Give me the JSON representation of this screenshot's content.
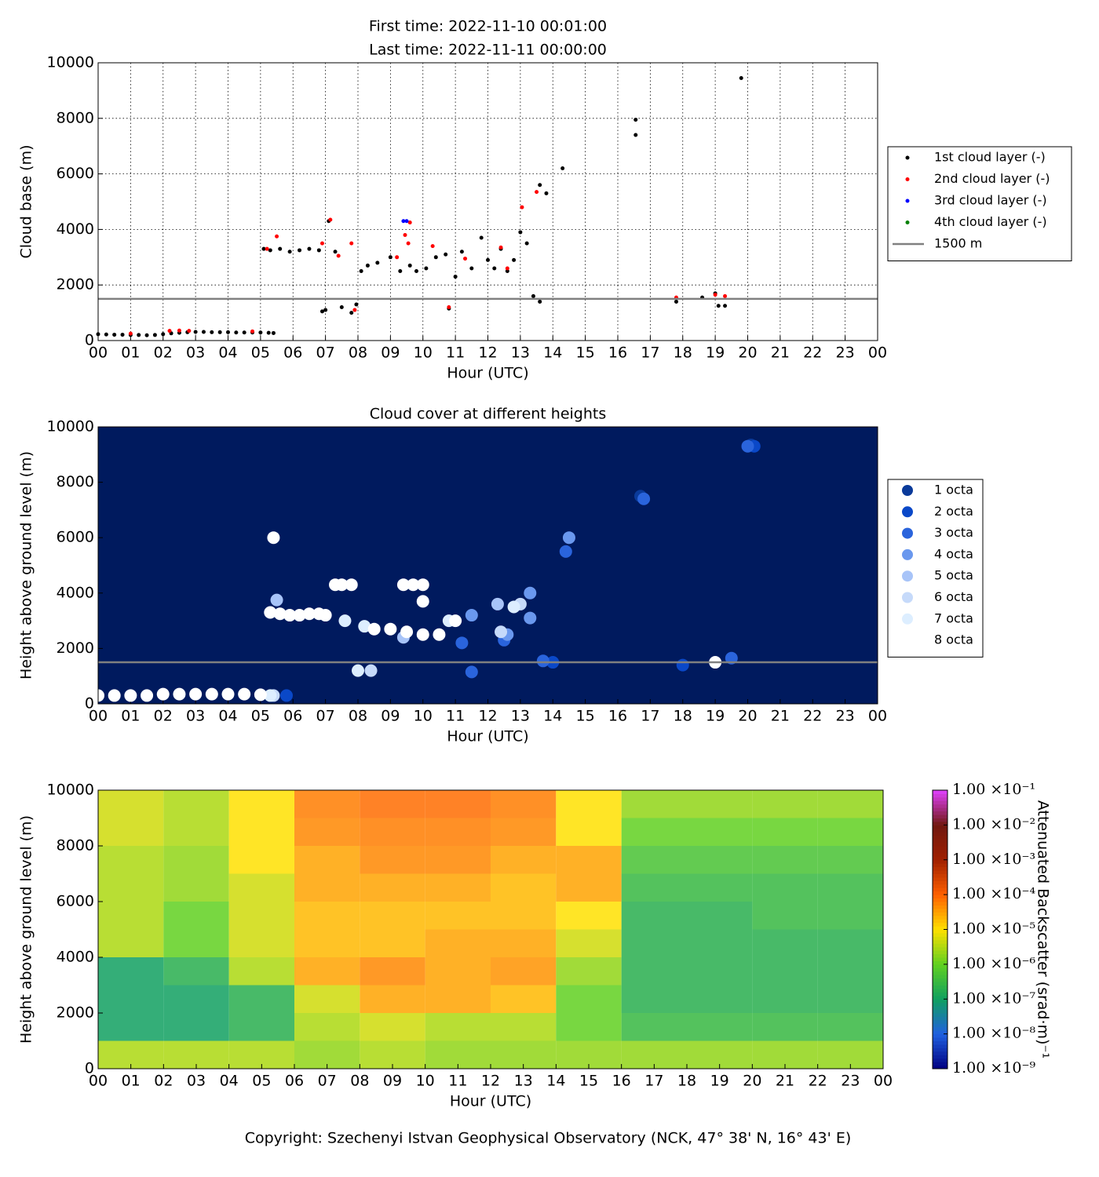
{
  "chart_data": [
    {
      "type": "scatter",
      "title_lines": [
        "First time: 2022-11-10 00:01:00",
        "Last time: 2022-11-11 00:00:00"
      ],
      "x_label": "Hour (UTC)",
      "y_label": "Cloud base (m)",
      "xlim": [
        0,
        24
      ],
      "ylim": [
        0,
        10000
      ],
      "xticks": [
        {
          "value": 0,
          "label": "00"
        },
        {
          "value": 1,
          "label": "01"
        },
        {
          "value": 2,
          "label": "02"
        },
        {
          "value": 3,
          "label": "03"
        },
        {
          "value": 4,
          "label": "04"
        },
        {
          "value": 5,
          "label": "05"
        },
        {
          "value": 6,
          "label": "06"
        },
        {
          "value": 7,
          "label": "07"
        },
        {
          "value": 8,
          "label": "08"
        },
        {
          "value": 9,
          "label": "09"
        },
        10,
        11,
        12,
        13,
        14,
        15,
        16,
        17,
        18,
        19,
        20,
        21,
        22,
        23,
        {
          "value": 24,
          "label": "00"
        }
      ],
      "yticks": [
        0,
        2000,
        4000,
        6000,
        8000,
        10000
      ],
      "grid": true,
      "marker_size": 2.5,
      "background": "#ffffff",
      "series": [
        {
          "name": "1st cloud layer (-)",
          "color": "#000000",
          "x": [
            0,
            0.25,
            0.5,
            0.75,
            1,
            1.25,
            1.5,
            1.75,
            2,
            2.25,
            2.5,
            2.75,
            3,
            3.25,
            3.5,
            3.75,
            4,
            4.25,
            4.5,
            4.75,
            5,
            5.25,
            5.4,
            5.1,
            5.3,
            5.6,
            5.9,
            6.2,
            6.5,
            6.8,
            6.9,
            7.0,
            7.1,
            7.3,
            7.5,
            7.8,
            7.95,
            8.1,
            8.3,
            8.6,
            9.0,
            9.3,
            9.6,
            9.8,
            10.1,
            10.4,
            10.7,
            10.8,
            11.0,
            11.2,
            11.5,
            11.8,
            12.0,
            12.2,
            12.4,
            12.6,
            12.8,
            13.0,
            13.2,
            13.4,
            13.6,
            13.6,
            13.8,
            14.3,
            16.55,
            16.55,
            17.8,
            18.6,
            19.0,
            19.1,
            19.3,
            19.8
          ],
          "values": [
            230,
            220,
            210,
            210,
            200,
            200,
            190,
            200,
            230,
            260,
            280,
            300,
            310,
            310,
            300,
            300,
            300,
            290,
            290,
            290,
            290,
            280,
            270,
            3300,
            3250,
            3300,
            3200,
            3250,
            3300,
            3250,
            1050,
            1100,
            4300,
            3200,
            1200,
            1000,
            1300,
            2500,
            2700,
            2800,
            3000,
            2500,
            2700,
            2500,
            2600,
            3000,
            3100,
            1150,
            2300,
            3200,
            2600,
            3700,
            2900,
            2600,
            3300,
            2500,
            2900,
            3900,
            3500,
            1600,
            1400,
            5600,
            5300,
            6200,
            7950,
            7400,
            1400,
            1550,
            1700,
            1250,
            1250,
            9450
          ]
        },
        {
          "name": "2nd cloud layer (-)",
          "color": "#ff0000",
          "x": [
            1.0,
            2.2,
            2.5,
            2.8,
            4.75,
            5.2,
            5.5,
            6.9,
            7.15,
            7.4,
            7.9,
            7.8,
            9.2,
            9.45,
            9.55,
            9.6,
            10.3,
            10.8,
            11.3,
            12.4,
            12.6,
            13.05,
            13.5,
            17.8,
            19.0,
            19.3
          ],
          "values": [
            250,
            350,
            360,
            350,
            330,
            3300,
            3750,
            3500,
            4350,
            3050,
            1100,
            3500,
            3000,
            3800,
            3500,
            4250,
            3400,
            1200,
            2950,
            3350,
            2600,
            4800,
            5350,
            1550,
            1650,
            1600
          ]
        },
        {
          "name": "3rd cloud layer (-)",
          "color": "#0000ff",
          "x": [
            9.4,
            9.5
          ],
          "values": [
            4300,
            4300
          ]
        },
        {
          "name": "4th cloud layer (-)",
          "color": "#008000",
          "x": [],
          "values": []
        }
      ],
      "reference_lines": [
        {
          "name": "1500 m",
          "value": 1500,
          "color": "#808080"
        }
      ]
    },
    {
      "type": "scatter",
      "title": "Cloud cover at different heights",
      "x_label": "Hour (UTC)",
      "y_label": "Height above ground level (m)",
      "xlim": [
        0,
        24
      ],
      "ylim": [
        0,
        10000
      ],
      "xticks": [
        {
          "value": 0,
          "label": "00"
        },
        {
          "value": 1,
          "label": "01"
        },
        {
          "value": 2,
          "label": "02"
        },
        {
          "value": 3,
          "label": "03"
        },
        {
          "value": 4,
          "label": "04"
        },
        {
          "value": 5,
          "label": "05"
        },
        {
          "value": 6,
          "label": "06"
        },
        {
          "value": 7,
          "label": "07"
        },
        {
          "value": 8,
          "label": "08"
        },
        {
          "value": 9,
          "label": "09"
        },
        10,
        11,
        12,
        13,
        14,
        15,
        16,
        17,
        18,
        19,
        20,
        21,
        22,
        23,
        {
          "value": 24,
          "label": "00"
        }
      ],
      "yticks": [
        0,
        2000,
        4000,
        6000,
        8000,
        10000
      ],
      "grid": false,
      "marker_size": 8,
      "background": "#001a5e",
      "series": [
        {
          "name": "1 octa",
          "color": "#0a3a9a",
          "x": [
            16.7,
            20.1
          ],
          "values": [
            7500,
            9350
          ]
        },
        {
          "name": "2 octa",
          "color": "#0a48c8",
          "x": [
            5.8,
            14.0,
            18.0,
            20.2
          ],
          "values": [
            300,
            1500,
            1400,
            9300
          ]
        },
        {
          "name": "3 octa",
          "color": "#2a64dc",
          "x": [
            11.2,
            11.5,
            12.5,
            13.7,
            14.4,
            16.8,
            19.5,
            20.0
          ],
          "values": [
            2200,
            1150,
            2300,
            1550,
            5500,
            7400,
            1650,
            9300
          ]
        },
        {
          "name": "4 octa",
          "color": "#6a98ee",
          "x": [
            11.5,
            12.6,
            13.3,
            13.3,
            14.5
          ],
          "values": [
            3200,
            2500,
            4000,
            3100,
            6000
          ]
        },
        {
          "name": "5 octa",
          "color": "#a8c4f8",
          "x": [
            5.5,
            12.3,
            9.4
          ],
          "values": [
            3750,
            3600,
            2400
          ]
        },
        {
          "name": "6 octa",
          "color": "#c6dafa",
          "x": [
            5.4,
            8.4,
            12.4,
            13.0
          ],
          "values": [
            300,
            1200,
            2600,
            3600
          ]
        },
        {
          "name": "7 octa",
          "color": "#ddeeff",
          "x": [
            5.3,
            8.0,
            7.6,
            8.2,
            10.8,
            12.8
          ],
          "values": [
            300,
            1200,
            3000,
            2800,
            3000,
            3500
          ]
        },
        {
          "name": "8 octa",
          "color": "#ffffff",
          "x": [
            0,
            0.5,
            1,
            1.5,
            2,
            2.5,
            3,
            3.5,
            4,
            4.5,
            5,
            5.4,
            5.3,
            5.6,
            5.9,
            6.2,
            6.5,
            6.8,
            7.0,
            7.3,
            7.5,
            7.8,
            9.4,
            9.7,
            10.0,
            10.0,
            8.5,
            9.0,
            9.5,
            10.0,
            10.5,
            11.0,
            19.0
          ],
          "values": [
            300,
            300,
            300,
            300,
            350,
            350,
            350,
            350,
            350,
            350,
            330,
            6000,
            3300,
            3250,
            3200,
            3200,
            3250,
            3250,
            3200,
            4300,
            4300,
            4300,
            4300,
            4300,
            4300,
            3700,
            2700,
            2700,
            2600,
            2500,
            2500,
            3000,
            1500
          ]
        }
      ],
      "reference_lines": [
        {
          "value": 1500,
          "color": "#808080"
        }
      ]
    },
    {
      "type": "heatmap",
      "x_label": "Hour (UTC)",
      "y_label": "Height above ground level (m)",
      "xlim": [
        0,
        24
      ],
      "ylim": [
        0,
        10000
      ],
      "xticks": [
        {
          "value": 0,
          "label": "00"
        },
        {
          "value": 1,
          "label": "01"
        },
        {
          "value": 2,
          "label": "02"
        },
        {
          "value": 3,
          "label": "03"
        },
        {
          "value": 4,
          "label": "04"
        },
        {
          "value": 5,
          "label": "05"
        },
        {
          "value": 6,
          "label": "06"
        },
        {
          "value": 7,
          "label": "07"
        },
        {
          "value": 8,
          "label": "08"
        },
        {
          "value": 9,
          "label": "09"
        },
        10,
        11,
        12,
        13,
        14,
        15,
        16,
        17,
        18,
        19,
        20,
        21,
        22,
        23,
        {
          "value": 24,
          "label": "00"
        }
      ],
      "yticks": [
        0,
        2000,
        4000,
        6000,
        8000,
        10000
      ],
      "x_bins": [
        0,
        2,
        4,
        6,
        8,
        10,
        12,
        14,
        16,
        18,
        20,
        22,
        24
      ],
      "y_bins": [
        0,
        1000,
        2000,
        3000,
        4000,
        5000,
        6000,
        7000,
        8000,
        9000,
        10000
      ],
      "values": [
        [
          3e-06,
          1e-07,
          1e-07,
          1e-07,
          3e-06,
          3e-06,
          3e-06,
          3e-06,
          5e-06,
          5e-06
        ],
        [
          3e-06,
          1e-07,
          1e-07,
          2e-07,
          1e-06,
          1e-06,
          2e-06,
          2e-06,
          3e-06,
          3e-06
        ],
        [
          3e-06,
          2e-07,
          2e-07,
          3e-06,
          5e-06,
          5e-06,
          5e-06,
          1e-05,
          1e-05,
          1e-05
        ],
        [
          2e-06,
          3e-06,
          5e-06,
          3e-05,
          2e-05,
          2e-05,
          3e-05,
          3e-05,
          5e-05,
          6e-05
        ],
        [
          3e-06,
          5e-06,
          3e-05,
          5e-05,
          2e-05,
          2e-05,
          3e-05,
          5e-05,
          6e-05,
          8e-05
        ],
        [
          2e-06,
          3e-06,
          3e-05,
          3e-05,
          3e-05,
          2e-05,
          3e-05,
          5e-05,
          6e-05,
          8e-05
        ],
        [
          2e-06,
          3e-06,
          2e-05,
          4e-05,
          3e-05,
          2e-05,
          2e-05,
          3e-05,
          5e-05,
          6e-05
        ],
        [
          2e-06,
          1e-06,
          1e-06,
          2e-06,
          5e-06,
          1e-05,
          3e-05,
          3e-05,
          1e-05,
          1e-05
        ],
        [
          2e-06,
          3e-07,
          2e-07,
          2e-07,
          2e-07,
          2e-07,
          3e-07,
          5e-07,
          1e-06,
          2e-06
        ],
        [
          2e-06,
          3e-07,
          2e-07,
          2e-07,
          2e-07,
          2e-07,
          3e-07,
          5e-07,
          1e-06,
          2e-06
        ],
        [
          2e-06,
          3e-07,
          2e-07,
          2e-07,
          2e-07,
          3e-07,
          3e-07,
          5e-07,
          1e-06,
          2e-06
        ],
        [
          2e-06,
          3e-07,
          2e-07,
          2e-07,
          2e-07,
          3e-07,
          3e-07,
          5e-07,
          1e-06,
          2e-06
        ]
      ],
      "clim": [
        1e-09,
        0.1
      ],
      "log_color": true,
      "colormap": [
        "#000080",
        "#2060e0",
        "#10a060",
        "#60d020",
        "#ffe000",
        "#ff6000",
        "#a02000",
        "#701810",
        "#e040ff"
      ],
      "colorbar_label": "Attenuated Backscatter (srad·m)⁻¹",
      "colorbar_ticks": [
        {
          "value": 1e-09,
          "label": "1.00 ×10⁻⁹"
        },
        {
          "value": 1e-08,
          "label": "1.00 ×10⁻⁸"
        },
        {
          "value": 1e-07,
          "label": "1.00 ×10⁻⁷"
        },
        {
          "value": 1e-06,
          "label": "1.00 ×10⁻⁶"
        },
        {
          "value": 1e-05,
          "label": "1.00 ×10⁻⁵"
        },
        {
          "value": 0.0001,
          "label": "1.00 ×10⁻⁴"
        },
        {
          "value": 0.001,
          "label": "1.00 ×10⁻³"
        },
        {
          "value": 0.01,
          "label": "1.00 ×10⁻²"
        },
        {
          "value": 0.1,
          "label": "1.00 ×10⁻¹"
        }
      ]
    }
  ],
  "footer": "Copyright: Szechenyi Istvan Geophysical Observatory (NCK, 47° 38' N, 16° 43' E)"
}
